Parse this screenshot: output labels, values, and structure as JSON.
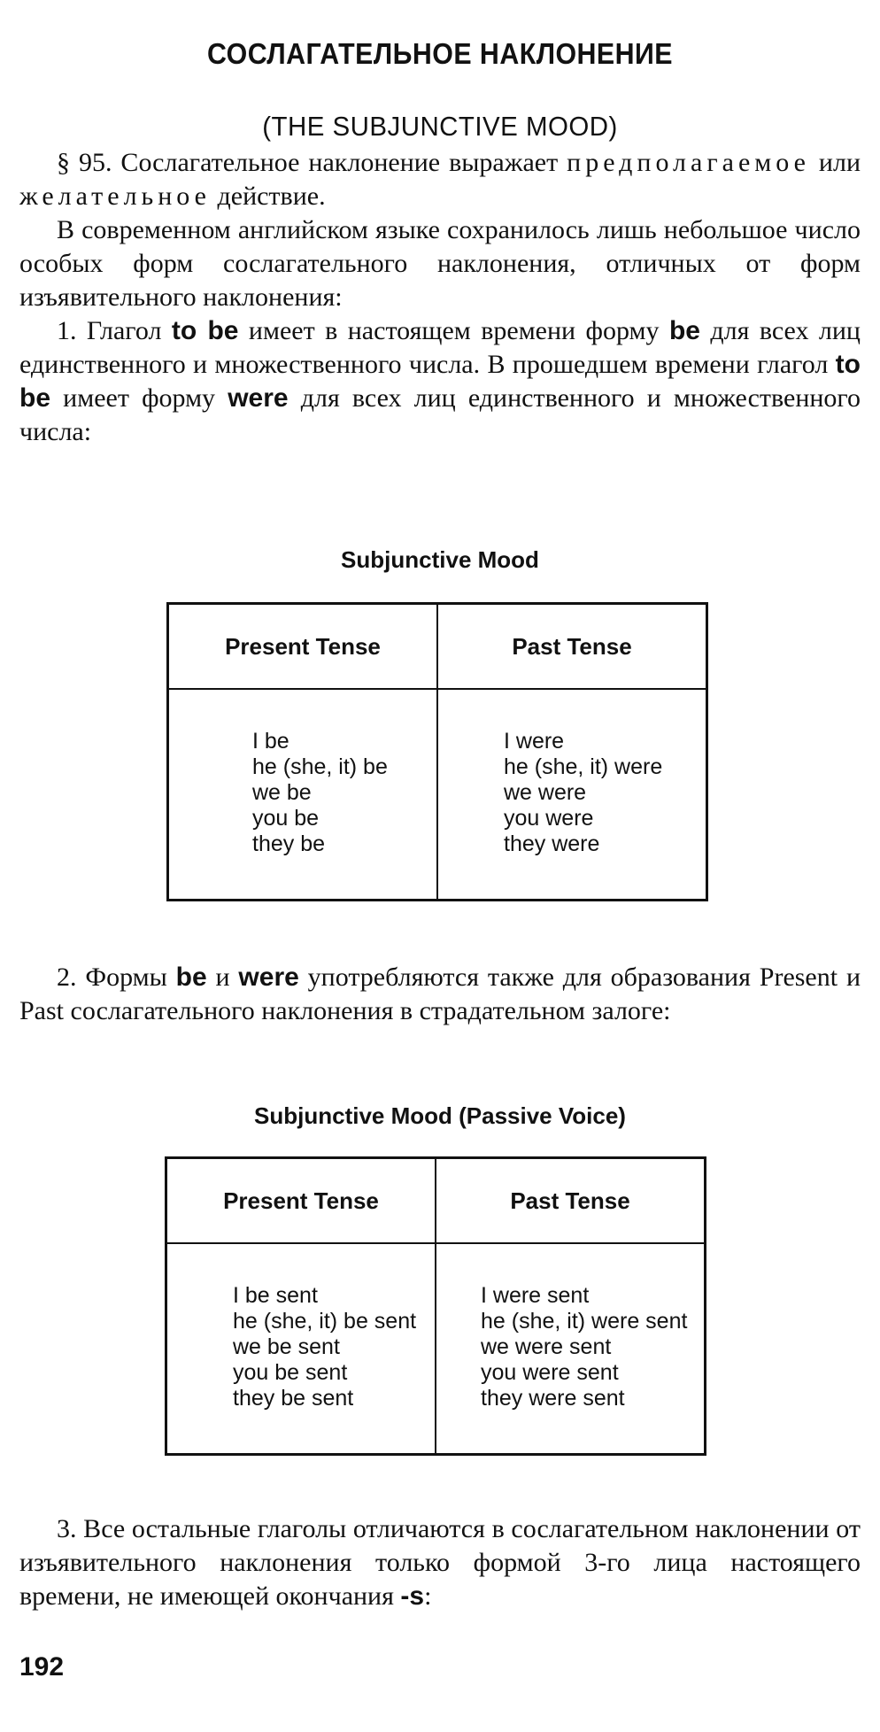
{
  "heading": "СОСЛАГАТЕЛЬНОЕ НАКЛОНЕНИЕ",
  "subheading": "(THE SUBJUNCTIVE MOOD)",
  "p1": {
    "num": "§ 95.",
    "a": " Сослагательное наклонение выражает ",
    "s1": "предполагаемое",
    "b": " или ",
    "s2": "желательное",
    "c": " действие."
  },
  "p2": "В современном английском языке сохранилось лишь небольшое число особых форм сослагательного наклонения, отличных от форм изъявительного наклонения:",
  "p3": {
    "a": "1. Глагол ",
    "w1": "to be",
    "b": " имеет в настоящем времени форму ",
    "w2": "be",
    "c": " для всех лиц единственного и множественного числа. В прошедшем времени глагол ",
    "w3": "to be",
    "d": " имеет форму ",
    "w4": "were",
    "e": " для всех лиц единственного и множественного числа:"
  },
  "table1": {
    "caption": "Subjunctive Mood",
    "headers": [
      "Present Tense",
      "Past Tense"
    ],
    "present": [
      "I be",
      "he (she, it) be",
      "we be",
      "you be",
      "they be"
    ],
    "past": [
      "I were",
      "he (she, it) were",
      "we were",
      "you were",
      "they were"
    ]
  },
  "p4": {
    "a": "2. Формы ",
    "w1": "be",
    "b": " и ",
    "w2": "were",
    "c": " употребляются также для образования Present и Past сослагательного наклонения в страдательном залоге:"
  },
  "table2": {
    "caption": "Subjunctive Mood (Passive Voice)",
    "headers": [
      "Present Tense",
      "Past Tense"
    ],
    "present": [
      "I be sent",
      "he (she, it) be sent",
      "we be sent",
      "you be sent",
      "they be sent"
    ],
    "past": [
      "I were sent",
      "he (she, it) were sent",
      "we were sent",
      "you were sent",
      "they were sent"
    ]
  },
  "p5": {
    "a": "3. Все остальные глаголы отличаются в сослагательном наклонении от изъявительного наклонения только формой 3-го лица настоящего времени, не имеющей окончания ",
    "w1": "-s",
    "b": ":"
  },
  "page_number": "192"
}
